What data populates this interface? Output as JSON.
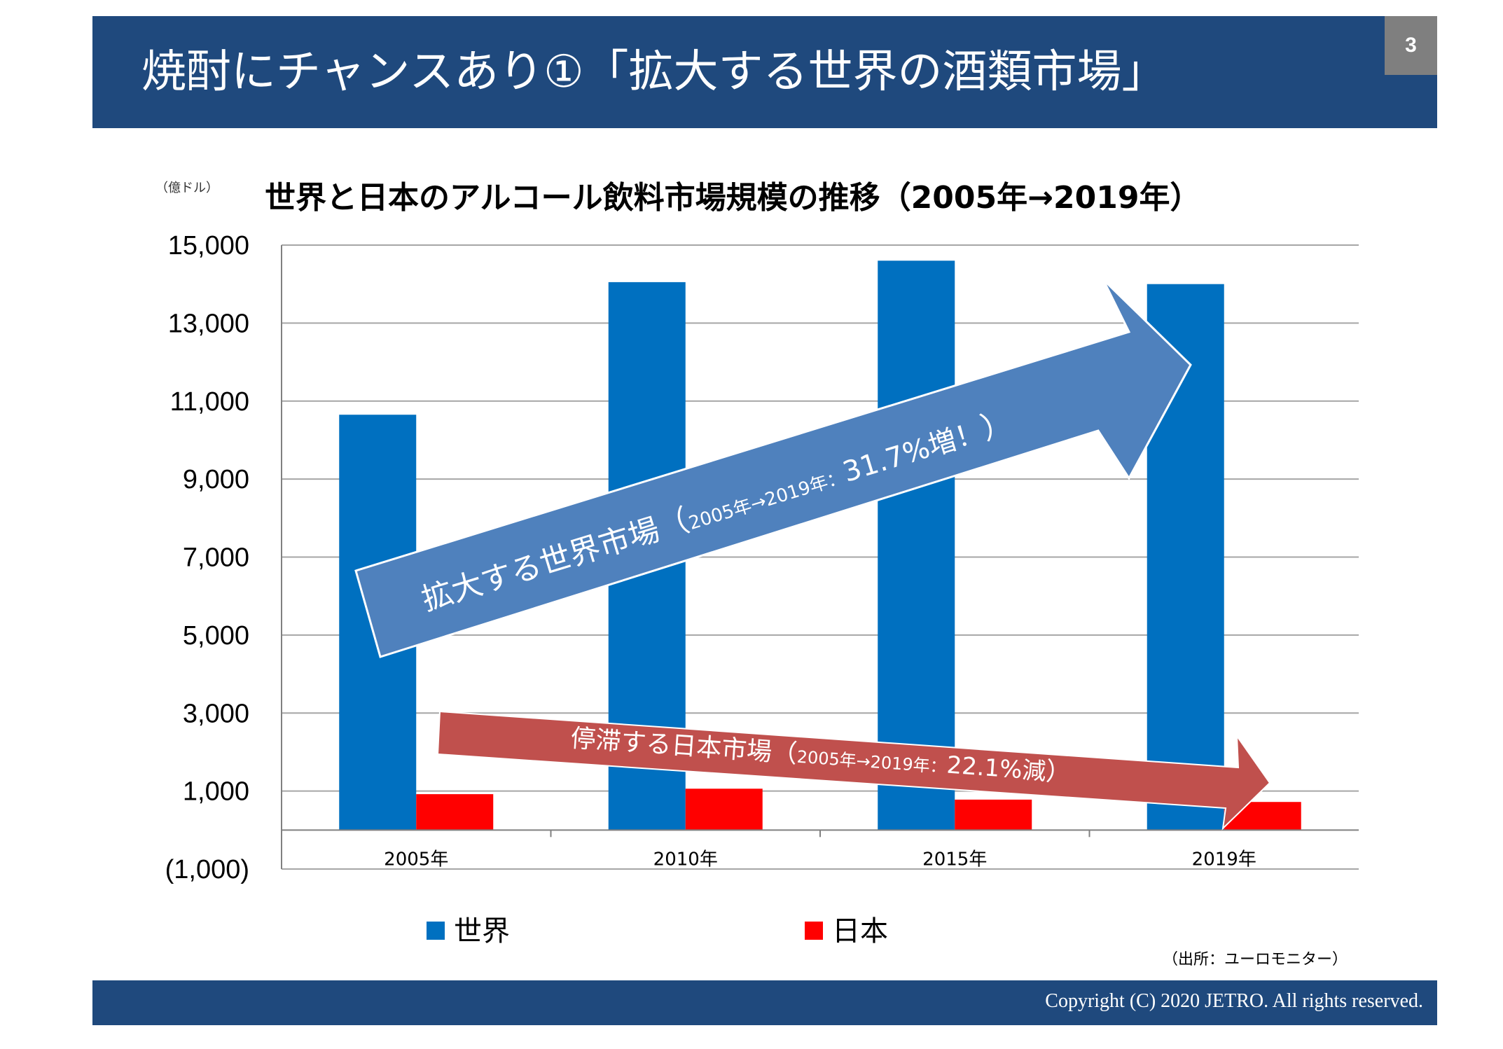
{
  "slide": {
    "title": "焼酎にチャンスあり①「拡大する世界の酒類市場」",
    "page_number": "3",
    "copyright": "Copyright (C) 2020 JETRO. All rights reserved.",
    "source": "（出所：ユーロモニター）"
  },
  "colors": {
    "header": "#1f497d",
    "world": "#0070c0",
    "japan": "#ff0000",
    "arrow_world": "#4f81bd",
    "arrow_japan": "#c0504d"
  },
  "chart_data": {
    "type": "bar",
    "title": "世界と日本のアルコール飲料市場規模の推移（2005年→2019年）",
    "unit_label": "（億ドル）",
    "categories": [
      "2005年",
      "2010年",
      "2015年",
      "2019年"
    ],
    "series": [
      {
        "name": "世界",
        "values": [
          10650,
          14050,
          14600,
          14000
        ]
      },
      {
        "name": "日本",
        "values": [
          920,
          1060,
          780,
          720
        ]
      }
    ],
    "yticks": [
      "15,000",
      "13,000",
      "11,000",
      "9,000",
      "7,000",
      "5,000",
      "3,000",
      "1,000",
      "(1,000)"
    ],
    "ytick_values": [
      15000,
      13000,
      11000,
      9000,
      7000,
      5000,
      3000,
      1000,
      -1000
    ],
    "ylim": [
      -1000,
      15000
    ],
    "grid": true,
    "legend_position": "bottom",
    "annotations": {
      "world": {
        "main": "拡大する世界市場",
        "paren_open": "（",
        "detail": "2005年→2019年：",
        "change": "31.7%増！",
        "paren_close": "）"
      },
      "japan": {
        "main": "停滞する日本市場",
        "paren_open": "（",
        "detail": "2005年→2019年：",
        "change": "22.1%減",
        "paren_close": "）"
      }
    }
  }
}
